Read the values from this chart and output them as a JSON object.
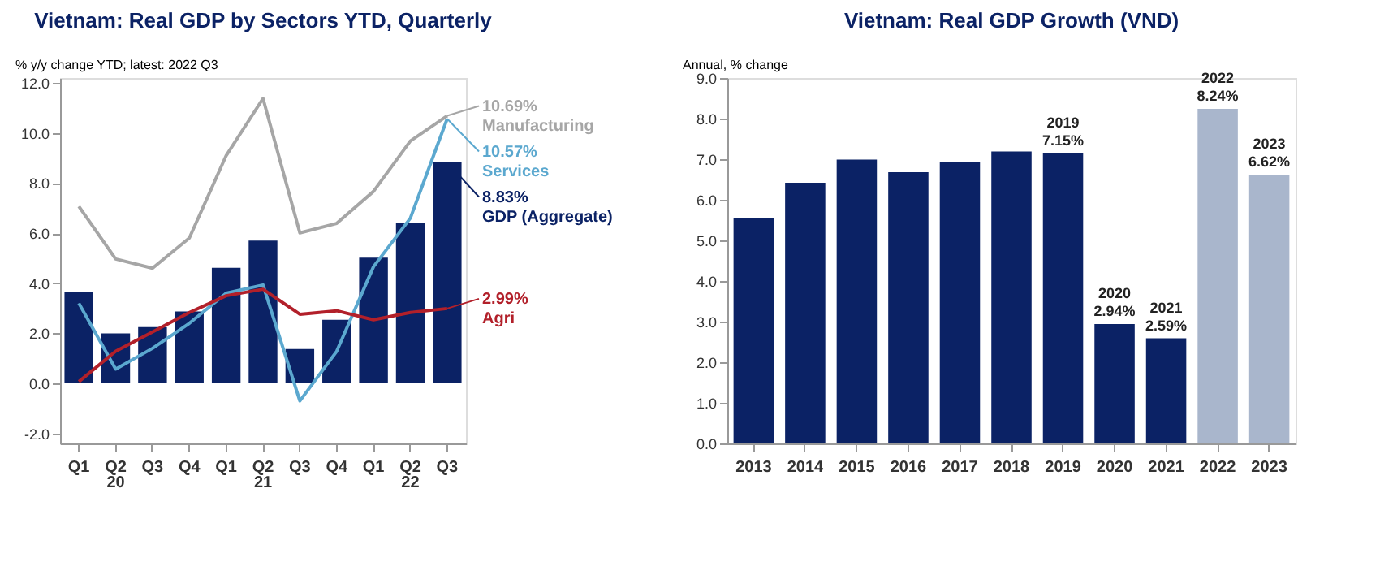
{
  "chart_data": [
    {
      "type": "bar",
      "title": "Vietnam: Real GDP by Sectors YTD, Quarterly",
      "ylabel": "% y/y change YTD; latest: 2022 Q3",
      "categories": [
        "Q1",
        "Q2",
        "Q3",
        "Q4",
        "Q1",
        "Q2",
        "Q3",
        "Q4",
        "Q1",
        "Q2",
        "Q3"
      ],
      "annotations": [
        "20",
        "21",
        "22"
      ],
      "ylim": [
        -2.4,
        12.2
      ],
      "yticks": [
        {
          "value": -2,
          "label": "-2.0"
        },
        {
          "value": 0,
          "label": "0.0"
        },
        {
          "value": 2,
          "label": "2.0"
        },
        {
          "value": 4,
          "label": "4.0"
        },
        {
          "value": 6,
          "label": "6.0"
        },
        {
          "value": 8,
          "label": "8.0"
        },
        {
          "value": 10,
          "label": "10.0"
        },
        {
          "value": 12,
          "label": "12.0"
        }
      ],
      "series": [
        {
          "name": "GDP (Aggregate)",
          "type": "bar",
          "color": "#0b2265",
          "values": [
            3.65,
            2.0,
            2.25,
            2.87,
            4.62,
            5.7,
            1.37,
            2.54,
            5.02,
            6.4,
            8.83
          ],
          "value_labels": [
            null,
            null,
            null,
            null,
            null,
            null,
            null,
            null,
            null,
            null,
            "8.83%"
          ]
        },
        {
          "name": "Manufacturing",
          "type": "line",
          "color": "#a6a6a6",
          "values": [
            7.07,
            4.97,
            4.6,
            5.81,
            9.1,
            11.38,
            6.01,
            6.39,
            7.67,
            9.68,
            10.69
          ],
          "value_labels": [
            null,
            null,
            null,
            null,
            null,
            null,
            null,
            null,
            null,
            null,
            "10.69%"
          ]
        },
        {
          "name": "Services",
          "type": "line",
          "color": "#5ba8cf",
          "values": [
            3.2,
            0.57,
            1.4,
            2.4,
            3.6,
            3.93,
            -0.7,
            1.28,
            4.66,
            6.6,
            10.57
          ],
          "value_labels": [
            null,
            null,
            null,
            null,
            null,
            null,
            null,
            null,
            null,
            null,
            "10.57%"
          ]
        },
        {
          "name": "Agri",
          "type": "line",
          "color": "#b2202a",
          "values": [
            0.07,
            1.28,
            2.05,
            2.83,
            3.5,
            3.76,
            2.76,
            2.9,
            2.54,
            2.83,
            2.99
          ],
          "value_labels": [
            null,
            null,
            null,
            null,
            null,
            null,
            null,
            null,
            null,
            null,
            "2.99%"
          ]
        }
      ]
    },
    {
      "type": "bar",
      "title": "Vietnam: Real GDP Growth (VND)",
      "ylabel": "Annual, % change",
      "categories": [
        "2013",
        "2014",
        "2015",
        "2016",
        "2017",
        "2018",
        "2019",
        "2020",
        "2021",
        "2022",
        "2023"
      ],
      "values": [
        5.54,
        6.42,
        6.99,
        6.68,
        6.92,
        7.19,
        7.15,
        2.94,
        2.59,
        8.24,
        6.62
      ],
      "colors": [
        "#0b2265",
        "#0b2265",
        "#0b2265",
        "#0b2265",
        "#0b2265",
        "#0b2265",
        "#0b2265",
        "#0b2265",
        "#0b2265",
        "#a9b6cc",
        "#a9b6cc"
      ],
      "value_labels": [
        null,
        null,
        null,
        null,
        null,
        null,
        "2019\n7.15%",
        "2020\n2.94%",
        "2021\n2.59%",
        "2022\n8.24%",
        "2023\n6.62%"
      ],
      "ylim": [
        0,
        9
      ],
      "yticks": [
        {
          "value": 0,
          "label": "0.0"
        },
        {
          "value": 1,
          "label": "1.0"
        },
        {
          "value": 2,
          "label": "2.0"
        },
        {
          "value": 3,
          "label": "3.0"
        },
        {
          "value": 4,
          "label": "4.0"
        },
        {
          "value": 5,
          "label": "5.0"
        },
        {
          "value": 6,
          "label": "6.0"
        },
        {
          "value": 7,
          "label": "7.0"
        },
        {
          "value": 8,
          "label": "8.0"
        },
        {
          "value": 9,
          "label": "9.0"
        }
      ]
    }
  ]
}
